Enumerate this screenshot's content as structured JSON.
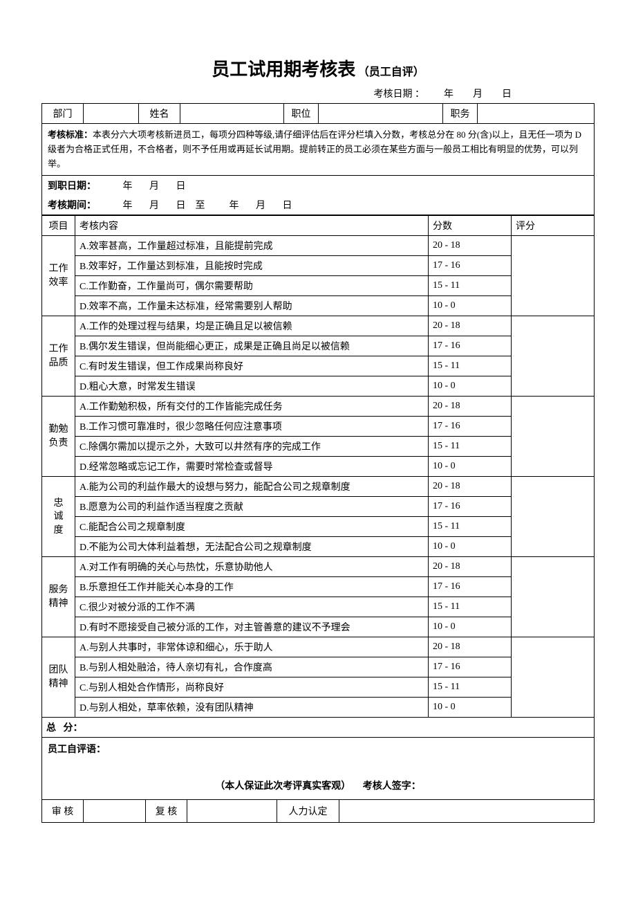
{
  "title": {
    "main": "员工试用期考核表",
    "sub": "（员工自评）"
  },
  "eval_date_row": "考核日期 ：        年        月        日",
  "header": {
    "dept_label": "部门",
    "name_label": "姓名",
    "position_label": "职位",
    "duty_label": "职务"
  },
  "standard": {
    "label": "考核标准：",
    "text": "本表分六大项考核新进员工，每项分四种等级,请仔细评估后在评分栏填入分数，考核总分在 80 分(含)以上，且无任一项为 D 级者为合格正式任用，不合格者，则不予任用或再延长试用期。提前转正的员工必须在某些方面与一般员工相比有明显的优势，可以列举。"
  },
  "arrival": {
    "label": "到职日期：",
    "value": "           年       月       日"
  },
  "period": {
    "label": "考核期间：",
    "value": "           年       月       日    至          年       月       日"
  },
  "col_headers": {
    "project": "项目",
    "content": "考核内容",
    "score": "分数",
    "rating": "评分"
  },
  "categories": [
    {
      "name": "工作\n效率",
      "items": [
        {
          "text": "A.效率甚高，工作量超过标准，且能提前完成",
          "score": "20 - 18"
        },
        {
          "text": "B.效率好，工作量达到标准，且能按时完成",
          "score": "17 - 16"
        },
        {
          "text": "C.工作勤奋，工作量尚可，偶尔需要帮助",
          "score": "15 - 11"
        },
        {
          "text": "D.效率不高，工作量未达标准，经常需要别人帮助",
          "score": "10 - 0"
        }
      ]
    },
    {
      "name": "工作\n品质",
      "items": [
        {
          "text": "A.工作的处理过程与结果，均是正确且足以被信赖",
          "score": "20 - 18"
        },
        {
          "text": "B.偶尔发生错误，但尚能细心更正，成果是正确且尚足以被信赖",
          "score": "17 - 16"
        },
        {
          "text": "C.有时发生错误，但工作成果尚称良好",
          "score": "15 - 11"
        },
        {
          "text": "D.粗心大意，时常发生错误",
          "score": "10 - 0"
        }
      ]
    },
    {
      "name": "勤勉\n负责",
      "items": [
        {
          "text": "A.工作勤勉积极，所有交付的工作皆能完成任务",
          "score": "20 - 18"
        },
        {
          "text": "B.工作习惯可靠准时，很少忽略任何应注意事项",
          "score": "17 - 16"
        },
        {
          "text": "C.除偶尔需加以提示之外，大致可以井然有序的完成工作",
          "score": "15 - 11"
        },
        {
          "text": "D.经常忽略或忘记工作，需要时常检查或督导",
          "score": "10 - 0"
        }
      ]
    },
    {
      "name": "忠\n诚\n度",
      "items": [
        {
          "text": "A.能为公司的利益作最大的设想与努力，能配合公司之规章制度",
          "score": "20 - 18"
        },
        {
          "text": "B.愿意为公司的利益作适当程度之贡献",
          "score": "17 - 16"
        },
        {
          "text": "C.能配合公司之规章制度",
          "score": "15 - 11"
        },
        {
          "text": "D.不能为公司大体利益着想，无法配合公司之规章制度",
          "score": "10 - 0"
        }
      ]
    },
    {
      "name": "服务\n精神",
      "items": [
        {
          "text": "A.对工作有明确的关心与热忱，乐意协助他人",
          "score": "20 - 18"
        },
        {
          "text": "B.乐意担任工作并能关心本身的工作",
          "score": "17 - 16"
        },
        {
          "text": "C.很少对被分派的工作不满",
          "score": "15 - 11"
        },
        {
          "text": "D.有时不愿接受自己被分派的工作，对主管善意的建议不予理会",
          "score": "10 - 0"
        }
      ]
    },
    {
      "name": "团队\n精神",
      "items": [
        {
          "text": "A.与别人共事时，非常体谅和细心，乐于助人",
          "score": "20 - 18"
        },
        {
          "text": "B.与别人相处融洽，待人亲切有礼，合作度高",
          "score": "17 - 16"
        },
        {
          "text": "C.与别人相处合作情形，尚称良好",
          "score": "15 - 11"
        },
        {
          "text": "D.与别人相处，草率依赖，没有团队精神",
          "score": "10 - 0"
        }
      ]
    }
  ],
  "total": {
    "label": "总",
    "text": "分："
  },
  "self_eval": {
    "label": "员工自评语：",
    "assurance": "（本人保证此次考评真实客观）",
    "sign": "考核人签字："
  },
  "footer": {
    "audit": "审  核",
    "review": "复  核",
    "hr": "人力认定"
  }
}
